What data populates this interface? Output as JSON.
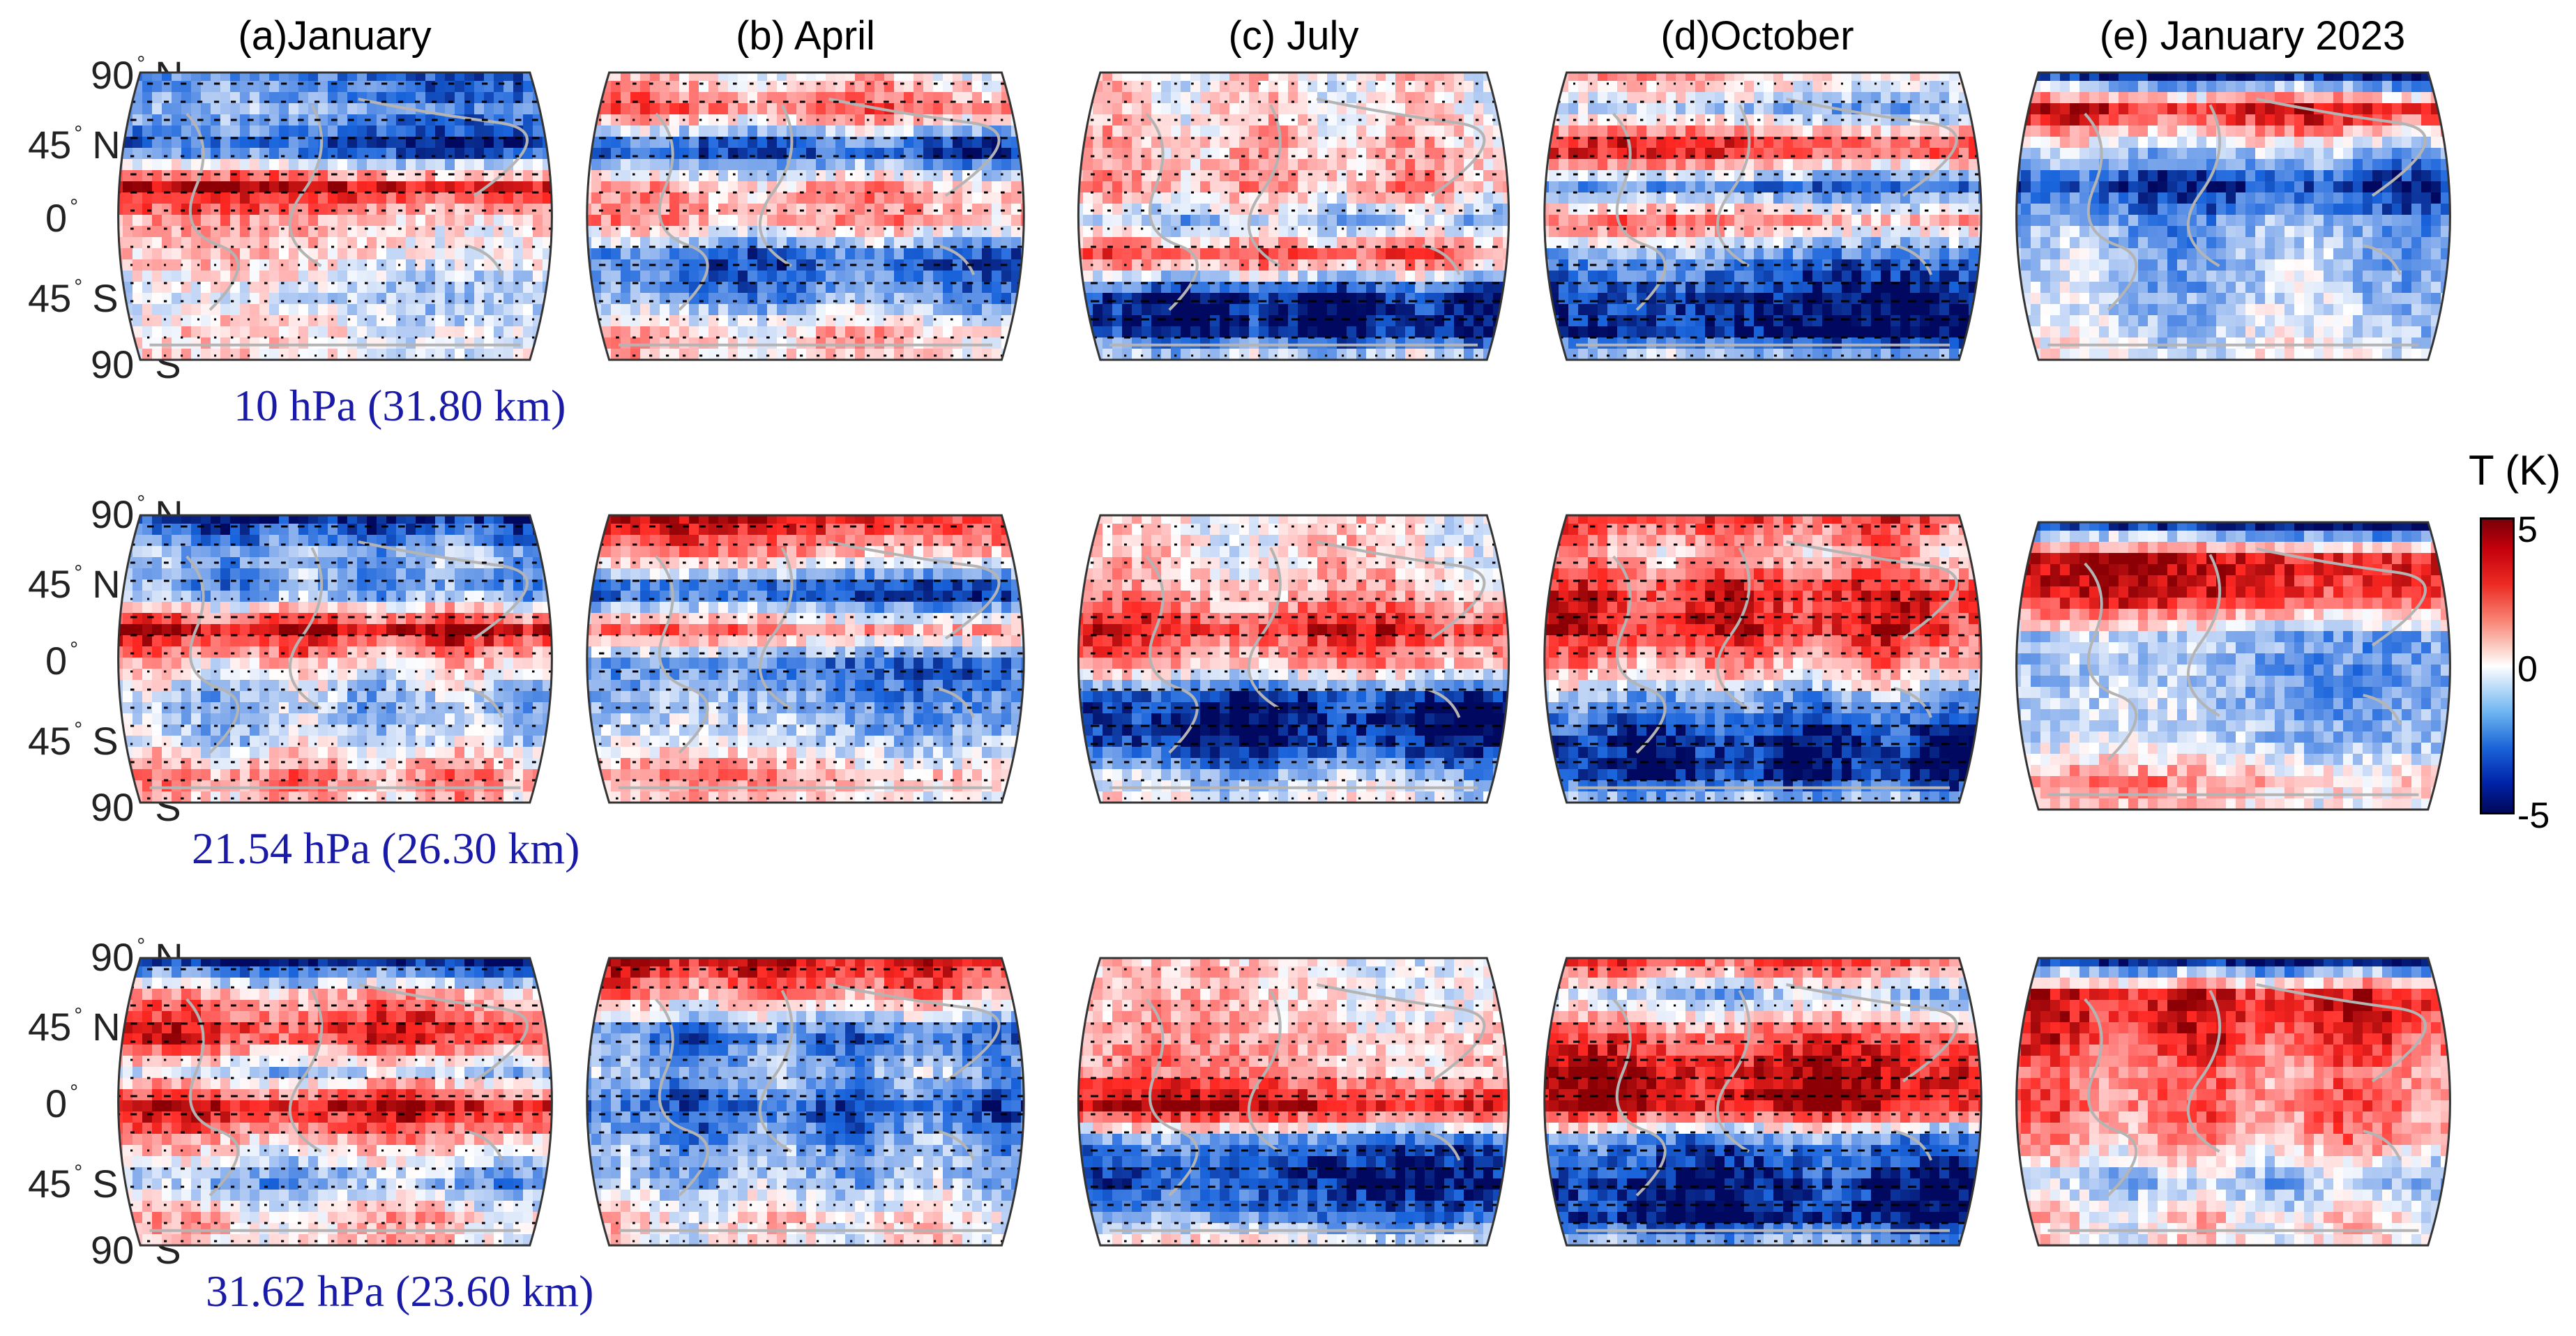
{
  "columns": [
    {
      "id": "jan",
      "title": "(a)January"
    },
    {
      "id": "apr",
      "title": "(b) April"
    },
    {
      "id": "jul",
      "title": "(c) July"
    },
    {
      "id": "oct",
      "title": "(d)October"
    },
    {
      "id": "jan2023",
      "title": "(e) January 2023"
    }
  ],
  "rows": [
    {
      "id": "r10",
      "level_label": "10 hPa (31.80 km)"
    },
    {
      "id": "r21",
      "level_label": "21.54 hPa (26.30 km)"
    },
    {
      "id": "r31",
      "level_label": "31.62 hPa (23.60 km)"
    }
  ],
  "lat_labels": [
    {
      "deg": "90",
      "hemi": "N"
    },
    {
      "deg": "45",
      "hemi": "N"
    },
    {
      "deg": "0",
      "hemi": ""
    },
    {
      "deg": "45",
      "hemi": "S"
    },
    {
      "deg": "90",
      "hemi": "S"
    }
  ],
  "colorbar": {
    "title": "T (K)",
    "max_label": "5",
    "mid_label": "0",
    "min_label": "-5"
  },
  "colors": {
    "warm": "#e3151b",
    "cold": "#0d2db8",
    "land_outline": "#b4b4b4",
    "level_text": "#1a1aa8"
  }
}
